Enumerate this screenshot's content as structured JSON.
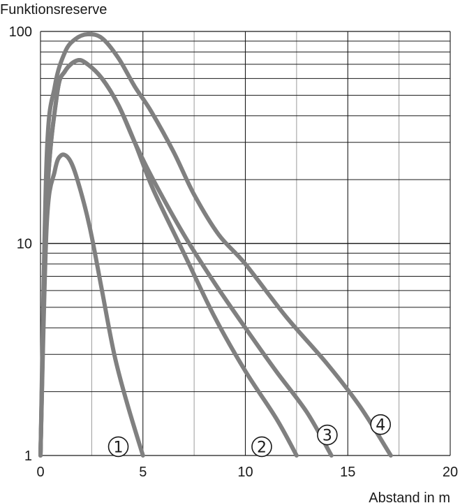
{
  "chart_data": {
    "type": "line",
    "ylabel": "Funktionsreserve",
    "xlabel": "Abstand in m",
    "xlim": [
      0,
      20
    ],
    "ylim": [
      1,
      100
    ],
    "yscale": "log",
    "grid": true,
    "xticks": [
      "0",
      "5",
      "10",
      "15",
      "20"
    ],
    "yticks": [
      "1",
      "10",
      "100"
    ],
    "series": [
      {
        "name": "1",
        "points": [
          [
            0,
            1
          ],
          [
            0.3,
            12
          ],
          [
            0.7,
            22
          ],
          [
            1.0,
            26
          ],
          [
            1.4,
            25
          ],
          [
            1.8,
            20
          ],
          [
            2.4,
            12
          ],
          [
            3.0,
            6
          ],
          [
            3.6,
            3
          ],
          [
            4.2,
            1.8
          ],
          [
            5.0,
            1
          ]
        ]
      },
      {
        "name": "2",
        "points": [
          [
            0,
            1
          ],
          [
            0.3,
            15
          ],
          [
            0.8,
            50
          ],
          [
            1.2,
            65
          ],
          [
            1.8,
            73
          ],
          [
            2.3,
            70
          ],
          [
            3.0,
            60
          ],
          [
            3.8,
            45
          ],
          [
            4.6,
            30
          ],
          [
            5.5,
            18
          ],
          [
            7.0,
            9
          ],
          [
            8.5,
            4.5
          ],
          [
            10.0,
            2.5
          ],
          [
            11.5,
            1.5
          ],
          [
            12.5,
            1
          ]
        ]
      },
      {
        "name": "3",
        "points": [
          [
            0,
            1
          ],
          [
            0.3,
            15
          ],
          [
            0.8,
            50
          ],
          [
            1.2,
            65
          ],
          [
            1.8,
            73
          ],
          [
            2.3,
            70
          ],
          [
            3.0,
            60
          ],
          [
            3.8,
            45
          ],
          [
            4.6,
            30
          ],
          [
            5.5,
            20
          ],
          [
            7.0,
            11
          ],
          [
            8.5,
            6.5
          ],
          [
            10.0,
            4
          ],
          [
            11.5,
            2.5
          ],
          [
            13.0,
            1.6
          ],
          [
            14.2,
            1
          ]
        ]
      },
      {
        "name": "4",
        "points": [
          [
            0,
            1
          ],
          [
            0.3,
            25
          ],
          [
            0.7,
            55
          ],
          [
            1.2,
            80
          ],
          [
            1.7,
            92
          ],
          [
            2.3,
            97
          ],
          [
            3.0,
            93
          ],
          [
            3.8,
            75
          ],
          [
            4.6,
            55
          ],
          [
            5.4,
            42
          ],
          [
            6.5,
            27
          ],
          [
            7.5,
            17
          ],
          [
            8.7,
            11
          ],
          [
            10.0,
            8
          ],
          [
            12.0,
            4.5
          ],
          [
            14.0,
            2.7
          ],
          [
            15.6,
            1.7
          ],
          [
            17.1,
            1
          ]
        ]
      }
    ],
    "annotations": [
      {
        "text": "1",
        "x": 3.8,
        "y": 1.1,
        "series": "1"
      },
      {
        "text": "2",
        "x": 10.8,
        "y": 1.1,
        "series": "2"
      },
      {
        "text": "3",
        "x": 14.0,
        "y": 1.25,
        "series": "3"
      },
      {
        "text": "4",
        "x": 16.6,
        "y": 1.4,
        "series": "4"
      }
    ],
    "colors": {
      "line": "#808080",
      "grid": "#1a1a1a",
      "minor_grid": "#9a9a9a"
    }
  }
}
